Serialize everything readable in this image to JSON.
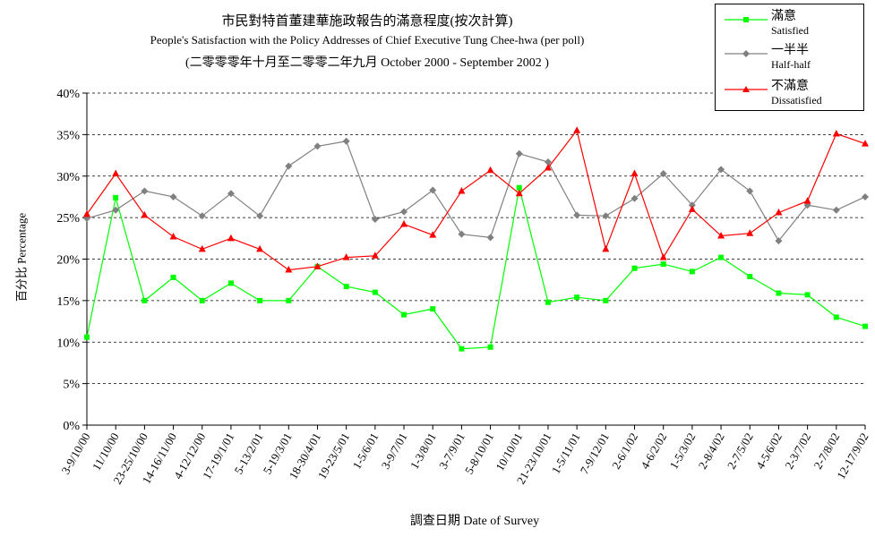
{
  "chart_data": {
    "type": "line",
    "title": "市民對特首董建華施政報告的滿意程度(按次計算)",
    "subtitle": "People's Satisfaction with the Policy Addresses of Chief Executive Tung Chee-hwa (per poll)",
    "subtitle2": "(二零零零年十月至二零零二年九月 October 2000 - September 2002 )",
    "xlabel": "調查日期 Date of Survey",
    "ylabel": "百分比 Percentage",
    "ylim": [
      0,
      40
    ],
    "yticks": [
      "0%",
      "5%",
      "10%",
      "15%",
      "20%",
      "25%",
      "30%",
      "35%",
      "40%"
    ],
    "grid": "horizontal dashed",
    "legend_position": "top-right",
    "categories": [
      "3-9/10/00",
      "11/10/00",
      "23-25/10/00",
      "14-16/11/00",
      "4-12/12/00",
      "17-19/1/01",
      "5-13/2/01",
      "5-19/3/01",
      "18-30/4/01",
      "19-23/5/01",
      "1-5/6/01",
      "3-9/7/01",
      "1-3/8/01",
      "3-7/9/01",
      "5-8/10/01",
      "10/10/01",
      "21-23/10/01",
      "1-5/11/01",
      "7-9/12/01",
      "2-6/1/02",
      "4-6/2/02",
      "1-5/3/02",
      "2-8/4/02",
      "2-7/5/02",
      "4-5/6/02",
      "2-3/7/02",
      "2-7/8/02",
      "12-17/9/02"
    ],
    "series": [
      {
        "name": "滿意",
        "name_en": "Satisfied",
        "color": "#00ff00",
        "marker": "square",
        "values": [
          10.6,
          27.4,
          15.0,
          17.8,
          15.0,
          17.1,
          15.0,
          15.0,
          19.1,
          16.7,
          16.0,
          13.3,
          14.0,
          9.2,
          9.4,
          28.6,
          14.8,
          15.4,
          15.0,
          18.9,
          19.4,
          18.5,
          20.2,
          17.9,
          15.9,
          15.7,
          13.0,
          11.9
        ]
      },
      {
        "name": "一半半",
        "name_en": "Half-half",
        "color": "#808080",
        "marker": "diamond",
        "values": [
          24.9,
          25.9,
          28.2,
          27.5,
          25.2,
          27.9,
          25.2,
          31.2,
          33.6,
          34.2,
          24.8,
          25.7,
          28.3,
          23.0,
          22.6,
          32.7,
          31.7,
          25.3,
          25.2,
          27.3,
          30.3,
          26.5,
          30.8,
          28.2,
          22.2,
          26.5,
          25.9,
          27.5
        ]
      },
      {
        "name": "不滿意",
        "name_en": "Dissatisfied",
        "color": "#ff0000",
        "marker": "triangle",
        "values": [
          25.4,
          30.3,
          25.3,
          22.7,
          21.2,
          22.5,
          21.2,
          18.7,
          19.1,
          20.2,
          20.4,
          24.2,
          22.9,
          28.2,
          30.7,
          27.9,
          31.0,
          35.5,
          21.2,
          30.3,
          20.2,
          26.0,
          22.8,
          23.1,
          25.6,
          27.0,
          35.1,
          33.9
        ]
      }
    ]
  }
}
